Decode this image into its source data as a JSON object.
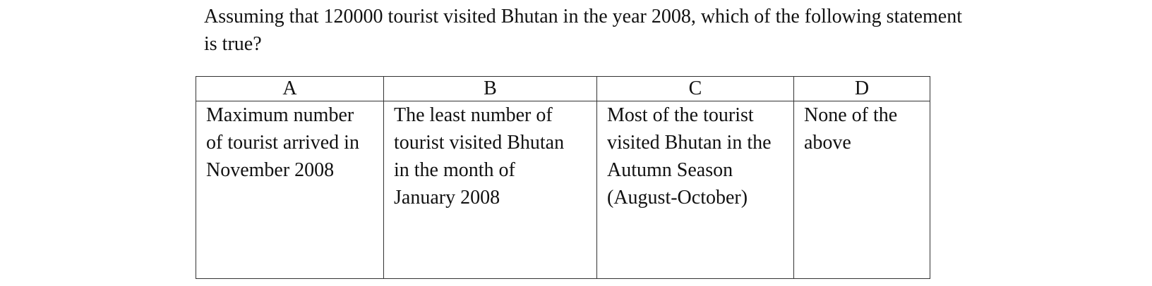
{
  "question": {
    "line1": "Assuming that 120000 tourist visited Bhutan in the year 2008, which of the following statement",
    "line2": "is true?"
  },
  "options": [
    {
      "letter": "A",
      "lines": [
        "Maximum number",
        "of tourist arrived in",
        "November 2008"
      ]
    },
    {
      "letter": "B",
      "lines": [
        "The least number of",
        "tourist visited Bhutan",
        "in the month of",
        "January 2008"
      ]
    },
    {
      "letter": "C",
      "lines": [
        "Most of the tourist",
        "visited Bhutan in the",
        "Autumn Season",
        "(August-October)"
      ]
    },
    {
      "letter": "D",
      "lines": [
        "None of the",
        "above"
      ]
    }
  ]
}
